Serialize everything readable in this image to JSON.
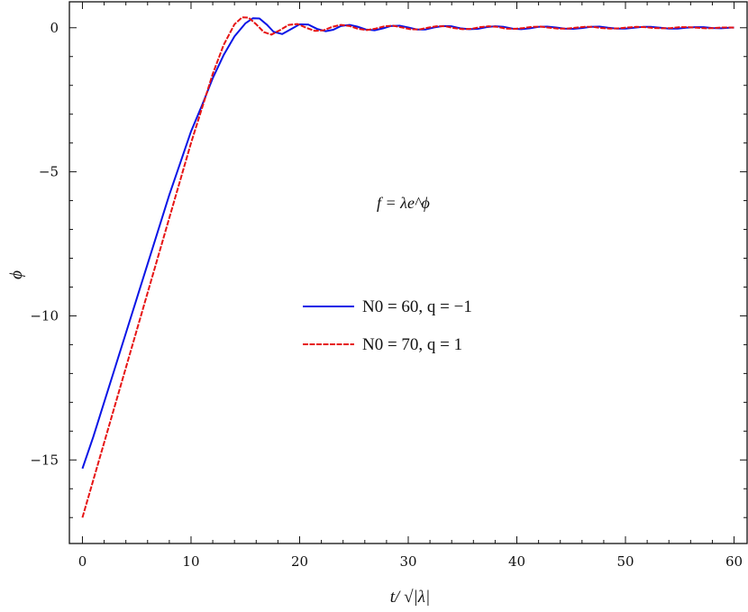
{
  "chart_data": {
    "type": "line",
    "title": "",
    "xlabel": "t/ √|λ|",
    "ylabel": "ϕ",
    "xlim": [
      -1.2,
      61.2
    ],
    "ylim": [
      -17.9,
      0.9
    ],
    "xticks": [
      0,
      10,
      20,
      30,
      40,
      50,
      60
    ],
    "yticks": [
      0,
      -5,
      -10,
      -15
    ],
    "xtick_labels": [
      "0",
      "10",
      "20",
      "30",
      "40",
      "50",
      "60"
    ],
    "ytick_labels": [
      "0",
      "−5",
      "−10",
      "−15"
    ],
    "annotation": "f = λe^ϕ",
    "legend_position": "center",
    "series": [
      {
        "name": "N0 = 60,    q = −1",
        "color": "#0a14e6",
        "style": "solid",
        "x": [
          0,
          1,
          2,
          3,
          4,
          5,
          6,
          7,
          8,
          9,
          10,
          11,
          12,
          13,
          14,
          15,
          15.7,
          16.3,
          17,
          17.6,
          18.4,
          19.2,
          20,
          20.8,
          21.6,
          22.4,
          23.1,
          23.8,
          24.6,
          25.3,
          26.1,
          26.9,
          27.7,
          28.4,
          29.2,
          30,
          30.8,
          31.6,
          32.4,
          33.2,
          34,
          34.8,
          35.6,
          36.4,
          37.2,
          38,
          38.8,
          39.6,
          40.4,
          41.2,
          42,
          42.8,
          43.6,
          44.4,
          45.2,
          46,
          46.8,
          47.6,
          48.4,
          49.2,
          50,
          50.8,
          51.6,
          52.4,
          53.2,
          54,
          54.8,
          55.6,
          56.4,
          57.2,
          58,
          58.8,
          59.6,
          60
        ],
        "y": [
          -15.3,
          -14.2,
          -13.0,
          -11.8,
          -10.6,
          -9.4,
          -8.2,
          -7.0,
          -5.8,
          -4.7,
          -3.6,
          -2.7,
          -1.75,
          -0.95,
          -0.3,
          0.15,
          0.33,
          0.32,
          0.1,
          -0.14,
          -0.22,
          -0.05,
          0.12,
          0.11,
          -0.04,
          -0.12,
          -0.07,
          0.06,
          0.1,
          0.04,
          -0.06,
          -0.09,
          -0.02,
          0.06,
          0.07,
          0.01,
          -0.06,
          -0.06,
          0.01,
          0.06,
          0.05,
          -0.02,
          -0.05,
          -0.04,
          0.02,
          0.05,
          0.03,
          -0.03,
          -0.05,
          -0.02,
          0.03,
          0.04,
          0.01,
          -0.03,
          -0.04,
          -0.01,
          0.03,
          0.04,
          0.0,
          -0.03,
          -0.03,
          0.0,
          0.03,
          0.03,
          0.0,
          -0.03,
          -0.03,
          0.0,
          0.02,
          0.02,
          -0.01,
          -0.02,
          0.0,
          0.01
        ]
      },
      {
        "name": "N0 = 70,    q = 1",
        "color": "#e61414",
        "style": "dashed",
        "x": [
          0,
          1,
          2,
          3,
          4,
          5,
          6,
          7,
          8,
          9,
          10,
          11,
          12,
          13,
          14,
          14.7,
          15.3,
          16,
          16.7,
          17.4,
          18.2,
          19,
          19.8,
          20.6,
          21.4,
          22.2,
          23,
          23.8,
          24.6,
          25.4,
          26.2,
          27,
          27.8,
          28.6,
          29.4,
          30.2,
          31,
          31.8,
          32.6,
          33.4,
          34.2,
          35,
          35.8,
          36.6,
          37.4,
          38.2,
          39,
          39.8,
          40.6,
          41.4,
          42.2,
          43,
          43.8,
          44.6,
          45.4,
          46.2,
          47,
          47.8,
          48.6,
          49.4,
          50.2,
          51,
          51.8,
          52.6,
          53.4,
          54.2,
          55,
          55.8,
          56.6,
          57.4,
          58.2,
          59,
          59.8,
          60
        ],
        "y": [
          -17.0,
          -15.7,
          -14.4,
          -13.1,
          -11.8,
          -10.5,
          -9.2,
          -7.9,
          -6.6,
          -5.3,
          -4.0,
          -2.8,
          -1.6,
          -0.6,
          0.12,
          0.36,
          0.35,
          0.12,
          -0.15,
          -0.24,
          -0.08,
          0.1,
          0.13,
          0.0,
          -0.11,
          -0.09,
          0.03,
          0.1,
          0.06,
          -0.04,
          -0.08,
          -0.03,
          0.05,
          0.07,
          0.01,
          -0.05,
          -0.06,
          0.0,
          0.05,
          0.05,
          -0.01,
          -0.05,
          -0.04,
          0.02,
          0.05,
          0.03,
          -0.03,
          -0.04,
          -0.01,
          0.03,
          0.04,
          0.0,
          -0.03,
          -0.03,
          0.0,
          0.03,
          0.03,
          -0.01,
          -0.03,
          -0.02,
          0.01,
          0.03,
          0.02,
          -0.01,
          -0.02,
          -0.01,
          0.02,
          0.02,
          0.0,
          -0.02,
          -0.01,
          0.01,
          0.01,
          0.0
        ]
      }
    ]
  }
}
